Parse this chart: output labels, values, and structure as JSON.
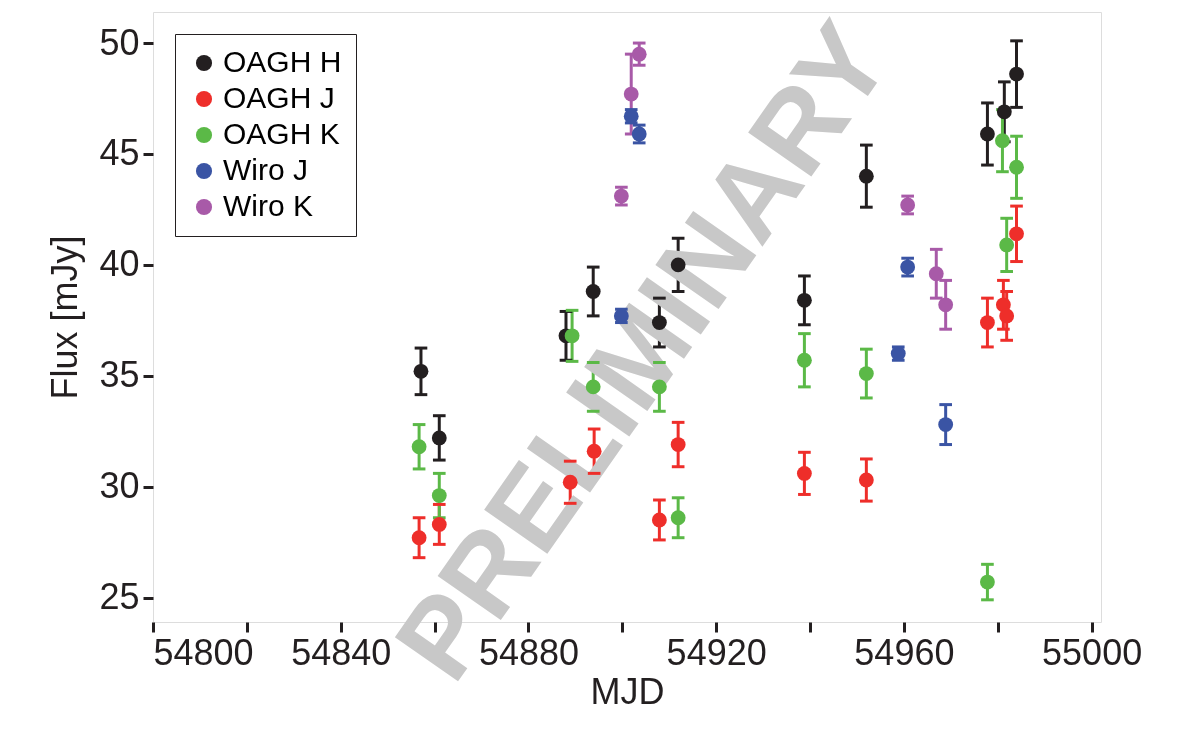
{
  "chart_data": {
    "type": "scatter",
    "xlabel": "MJD",
    "ylabel": "Flux [mJy]",
    "xlim": [
      54800,
      55002
    ],
    "ylim": [
      23.9,
      51.4
    ],
    "xticks": [
      54800,
      {
        "value": 54820,
        "label": null
      },
      54840,
      {
        "value": 54860,
        "label": null
      },
      54880,
      {
        "value": 54900,
        "label": null
      },
      54920,
      {
        "value": 54940,
        "label": null
      },
      54960,
      {
        "value": 54980,
        "label": null
      },
      55000
    ],
    "yticks": [
      25,
      30,
      35,
      40,
      45,
      50
    ],
    "grid": false,
    "legend": "top left",
    "marker": "circle",
    "annotations": [
      "PRELIMINARY"
    ],
    "series": [
      {
        "name": "OAGH H",
        "color": "#231f20",
        "x": [
          54857.1,
          54861.0,
          54888.0,
          54893.8,
          54907.9,
          54911.9,
          54938.8,
          54952.0,
          54977.8,
          54981.4,
          54984.0
        ],
        "values": [
          35.2,
          32.2,
          36.8,
          38.8,
          37.4,
          40.0,
          38.4,
          44.0,
          45.9,
          46.9,
          48.6
        ],
        "errors": [
          1.05,
          1.0,
          1.1,
          1.1,
          1.1,
          1.2,
          1.1,
          1.4,
          1.4,
          1.35,
          1.5
        ]
      },
      {
        "name": "OAGH J",
        "color": "#ee2e2a",
        "x": [
          54856.7,
          54861.0,
          54888.9,
          54894.0,
          54907.9,
          54911.9,
          54938.8,
          54952.0,
          54977.8,
          54981.2,
          54981.9,
          54984.0
        ],
        "values": [
          27.7,
          28.3,
          30.2,
          31.6,
          28.5,
          31.9,
          30.6,
          30.3,
          37.4,
          38.2,
          37.7,
          41.4
        ],
        "errors": [
          0.9,
          0.9,
          0.95,
          1.0,
          0.9,
          1.0,
          0.95,
          0.95,
          1.1,
          1.1,
          1.1,
          1.25
        ]
      },
      {
        "name": "OAGH K",
        "color": "#5bb947",
        "x": [
          54856.7,
          54861.0,
          54889.3,
          54893.8,
          54907.9,
          54911.9,
          54938.8,
          54952.0,
          54977.8,
          54981.0,
          54981.9,
          54984.0
        ],
        "values": [
          31.8,
          29.6,
          36.8,
          34.5,
          34.5,
          28.6,
          35.7,
          35.1,
          25.7,
          45.6,
          40.9,
          44.4
        ],
        "errors": [
          1.0,
          1.0,
          1.15,
          1.1,
          1.1,
          0.9,
          1.2,
          1.1,
          0.8,
          1.4,
          1.2,
          1.4
        ]
      },
      {
        "name": "Wiro J",
        "color": "#3a54a4",
        "x": [
          54899.8,
          54901.9,
          54903.6,
          54958.8,
          54960.8,
          54968.9
        ],
        "values": [
          37.7,
          46.7,
          45.9,
          36.0,
          39.9,
          32.8
        ],
        "errors": [
          0.3,
          0.3,
          0.4,
          0.3,
          0.4,
          0.9
        ]
      },
      {
        "name": "Wiro K",
        "color": "#a85aa8",
        "x": [
          54899.8,
          54901.9,
          54903.6,
          54960.8,
          54966.9,
          54968.9
        ],
        "values": [
          43.1,
          47.7,
          49.5,
          42.7,
          39.6,
          38.2
        ],
        "errors": [
          0.4,
          1.8,
          0.5,
          0.4,
          1.1,
          1.1
        ]
      }
    ]
  }
}
